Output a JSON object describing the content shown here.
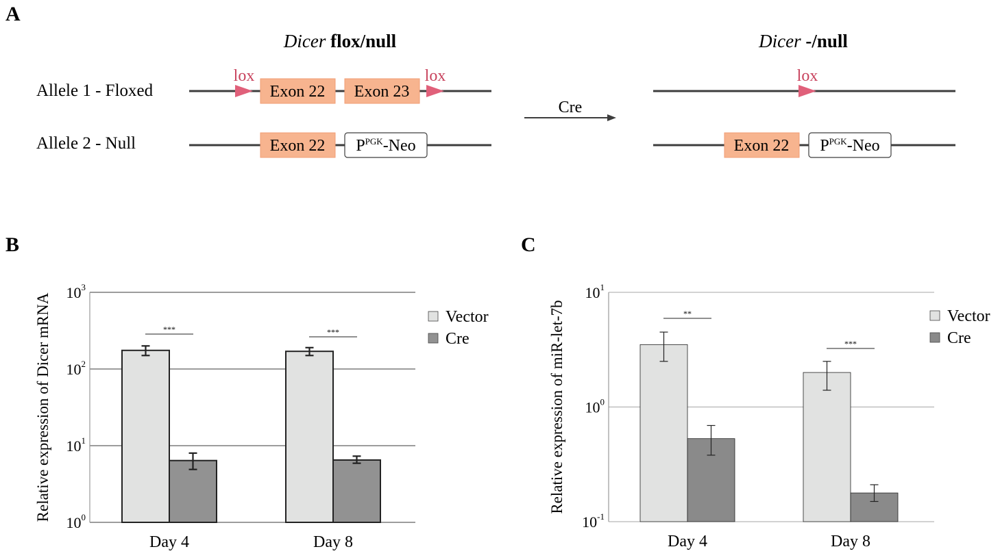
{
  "panels": {
    "a": {
      "letter": "A",
      "left_title_italic": "Dicer",
      "left_title_rest": "flox/null",
      "right_title_italic": "Dicer",
      "right_title_rest": "-/null",
      "allele1_label": "Allele 1 - Floxed",
      "allele2_label": "Allele 2 - Null",
      "lox": "lox",
      "exon22": "Exon 22",
      "exon23": "Exon 23",
      "neo_prefix": "P",
      "neo_sup": "PGK",
      "neo_suffix": "-Neo",
      "arrow_label": "Cre",
      "colors": {
        "exon_fill": "#f7b48f",
        "lox": "#e0607a",
        "lox_text": "#c8435d",
        "line": "#3d3d3d"
      }
    },
    "b": {
      "letter": "B"
    },
    "c": {
      "letter": "C"
    }
  },
  "chart_data": [
    {
      "type": "bar",
      "scale": "log",
      "title": "",
      "ylabel": "Relative expression of Dicer mRNA",
      "xlabel": "",
      "categories": [
        "Day 4",
        "Day 8"
      ],
      "y_ticks": [
        {
          "base": "10",
          "exp": "0",
          "value": 1
        },
        {
          "base": "10",
          "exp": "1",
          "value": 10
        },
        {
          "base": "10",
          "exp": "2",
          "value": 100
        },
        {
          "base": "10",
          "exp": "3",
          "value": 1000
        }
      ],
      "ylim": [
        1,
        1000
      ],
      "series": [
        {
          "name": "Vector",
          "color": "#e1e2e1",
          "values": [
            175,
            170
          ],
          "err_low": [
            150,
            150
          ],
          "err_high": [
            200,
            190
          ]
        },
        {
          "name": "Cre",
          "color": "#929292",
          "values": [
            6.4,
            6.5
          ],
          "err_low": [
            4.9,
            5.9
          ],
          "err_high": [
            8.0,
            7.3
          ]
        }
      ],
      "significance": [
        "***",
        "***"
      ],
      "legend": "top-right",
      "grid": true
    },
    {
      "type": "bar",
      "scale": "log",
      "title": "",
      "ylabel": "Relative expression of miR-let-7b",
      "xlabel": "",
      "categories": [
        "Day 4",
        "Day 8"
      ],
      "y_ticks": [
        {
          "base": "10",
          "exp": "-1",
          "value": 0.1
        },
        {
          "base": "10",
          "exp": "0",
          "value": 1
        },
        {
          "base": "10",
          "exp": "1",
          "value": 10
        }
      ],
      "ylim": [
        0.1,
        10
      ],
      "series": [
        {
          "name": "Vector",
          "color": "#e1e2e1",
          "values": [
            3.5,
            2.0
          ],
          "err_low": [
            2.5,
            1.4
          ],
          "err_high": [
            4.5,
            2.5
          ]
        },
        {
          "name": "Cre",
          "color": "#8a8a8a",
          "values": [
            0.53,
            0.178
          ],
          "err_low": [
            0.38,
            0.15
          ],
          "err_high": [
            0.69,
            0.21
          ]
        }
      ],
      "significance": [
        "**",
        "***"
      ],
      "legend": "top-right",
      "grid": true
    }
  ]
}
